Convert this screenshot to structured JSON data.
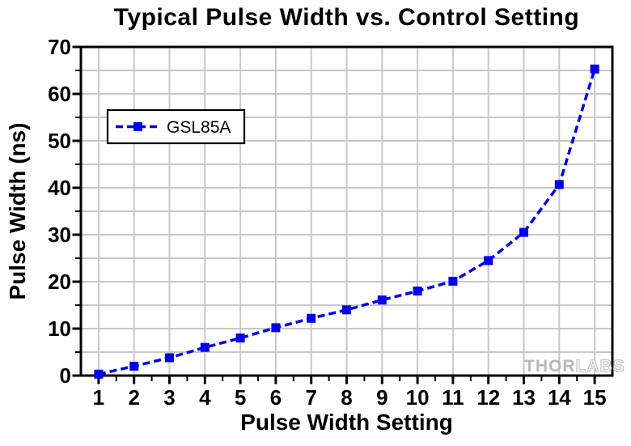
{
  "chart_data": {
    "type": "line",
    "title": "Typical Pulse Width vs. Control Setting",
    "xlabel": "Pulse Width Setting",
    "ylabel": "Pulse Width (ns)",
    "x": [
      1,
      2,
      3,
      4,
      5,
      6,
      7,
      8,
      9,
      10,
      11,
      12,
      13,
      14,
      15
    ],
    "series": [
      {
        "name": "GSL85A",
        "values": [
          0.3,
          2.0,
          3.8,
          6.0,
          8.0,
          10.2,
          12.2,
          14.0,
          16.1,
          18.0,
          20.1,
          24.5,
          30.5,
          40.7,
          65.3
        ],
        "color": "#0000ee",
        "marker": "square",
        "line_style": "dashed"
      }
    ],
    "xlim": [
      0.5,
      15.5
    ],
    "ylim": [
      0,
      70
    ],
    "x_major_ticks": [
      1,
      2,
      3,
      4,
      5,
      6,
      7,
      8,
      9,
      10,
      11,
      12,
      13,
      14,
      15
    ],
    "y_major_ticks": [
      0,
      10,
      20,
      30,
      40,
      50,
      60,
      70
    ],
    "x_minor_step": 0.5,
    "y_minor_step": 5,
    "grid": {
      "vertical_step": 1,
      "horizontal_step": 5,
      "color": "#c8c8c8"
    },
    "legend_position": "upper-left"
  },
  "watermark": {
    "part1": "THOR",
    "part2": "LABS"
  }
}
